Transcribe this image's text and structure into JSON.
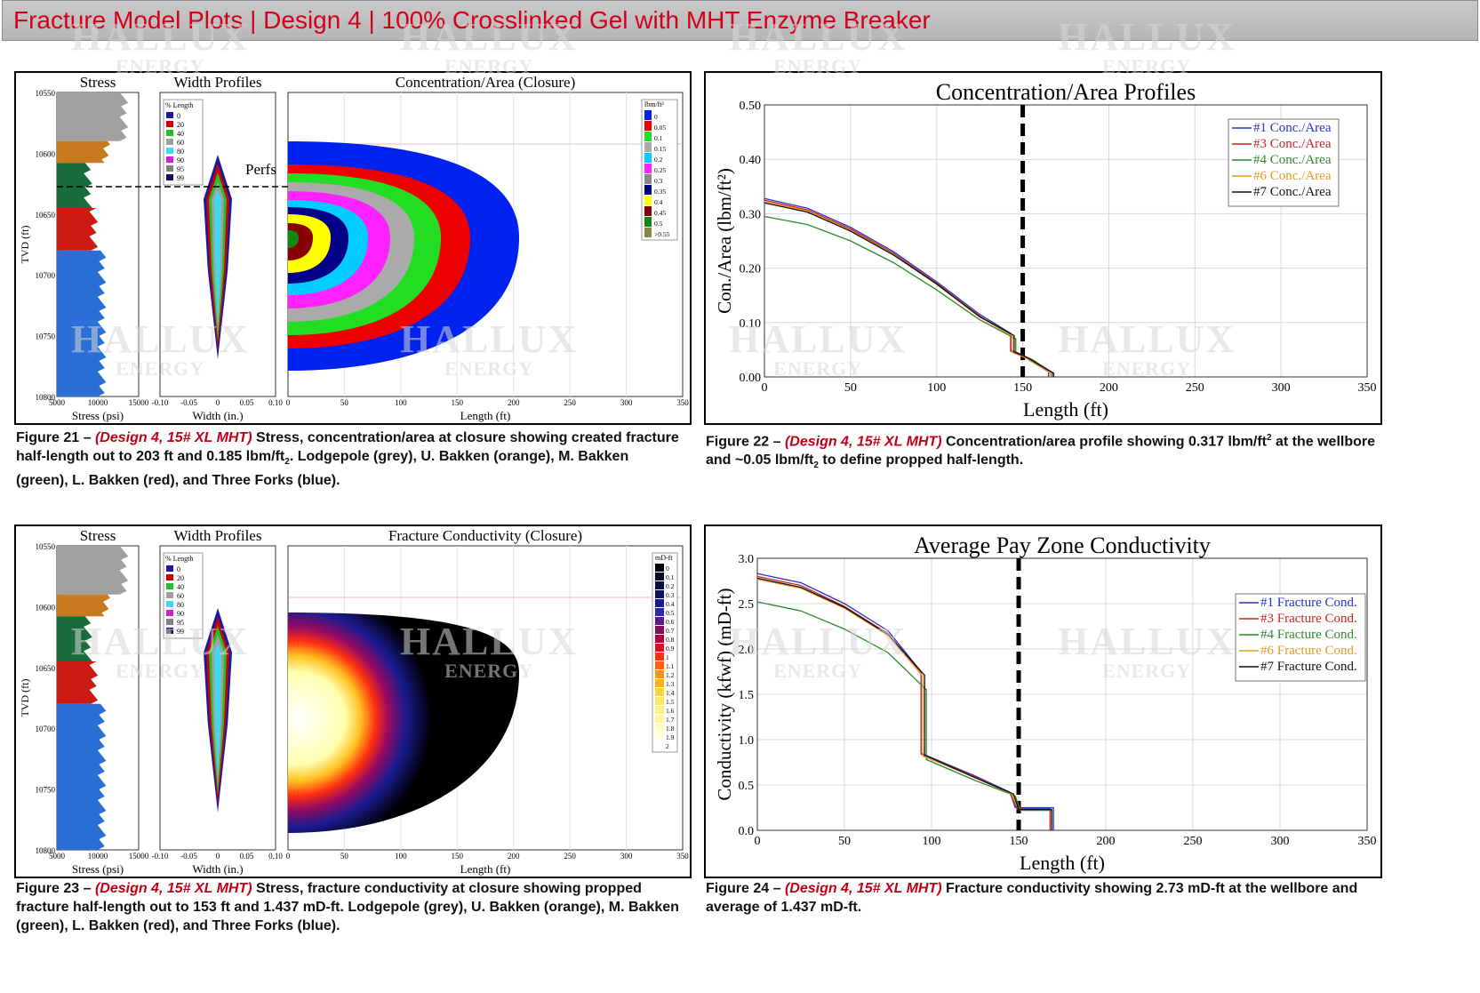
{
  "header": {
    "title": "Fracture Model Plots | Design 4 | 100% Crosslinked Gel with MHT Enzyme Breaker"
  },
  "watermark": {
    "big": "HALLUX",
    "small": "ENERGY"
  },
  "colors": {
    "stress_lodgepole": "#a0a0a0",
    "stress_ubakken": "#c87a1e",
    "stress_mbakken": "#1a6b3a",
    "stress_lbakken": "#cc1a10",
    "stress_threeforks": "#2a6fd6"
  },
  "captions": {
    "fig21": {
      "label": "Figure 21 –",
      "design": "(Design 4, 15# XL MHT)",
      "text": "Stress, concentration/area at closure showing created fracture half-length out to 203 ft and 0.185 lbm/ft",
      "sub": "2",
      "text2": ".  Lodgepole (grey), U. Bakken (orange), M. Bakken (green), L. Bakken (red), and Three Forks (blue)."
    },
    "fig22": {
      "label": "Figure 22 –",
      "design": "(Design 4, 15# XL MHT)",
      "text": "Concentration/area profile showing 0.317 lbm/ft",
      "sup": "2",
      "text2": " at the wellbore and ~0.05 lbm/ft",
      "sub": "2",
      "text3": " to define propped half-length."
    },
    "fig23": {
      "label": "Figure 23 –",
      "design": "(Design 4, 15# XL MHT)",
      "text": "Stress, fracture conductivity at closure showing propped fracture half-length out to 153 ft and 1.437 mD-ft.  Lodgepole (grey), U. Bakken (orange), M. Bakken (green), L. Bakken (red), and Three Forks (blue)."
    },
    "fig24": {
      "label": "Figure 24 –",
      "design": "(Design 4, 15# XL MHT)",
      "text": "Fracture conductivity showing 2.73 mD-ft at the wellbore and average of 1.437 mD-ft."
    }
  },
  "panels": {
    "p21": {
      "stress_title": "Stress",
      "width_title": "Width Profiles",
      "main_title": "Concentration/Area (Closure)",
      "perfs": "Perfs",
      "tvd_label": "TVD (ft)",
      "tvd_ticks": [
        "10550",
        "10600",
        "10650",
        "10700",
        "10750",
        "10800"
      ],
      "stress_ticks": [
        "5000",
        "10000",
        "15000"
      ],
      "stress_xlabel": "Stress (psi)",
      "width_ticks": [
        "-0.10",
        "-0.05",
        "0",
        "0.05",
        "0.10"
      ],
      "width_xlabel": "Width (in.)",
      "len_ticks": [
        "0",
        "50",
        "100",
        "150",
        "200",
        "250",
        "300",
        "350"
      ],
      "len_xlabel": "Length (ft)",
      "wp_legend_title": "% Length",
      "wp_legend": [
        "0",
        "20",
        "40",
        "60",
        "80",
        "90",
        "95",
        "99"
      ],
      "legend_title": "lbm/ft²",
      "legend": [
        "0",
        "0.05",
        "0.1",
        "0.15",
        "0.2",
        "0.25",
        "0.3",
        "0.35",
        "0.4",
        "0.45",
        "0.5",
        ">0.55"
      ]
    },
    "p23": {
      "stress_title": "Stress",
      "width_title": "Width Profiles",
      "main_title": "Fracture Conductivity (Closure)",
      "tvd_label": "TVD (ft)",
      "tvd_ticks": [
        "10550",
        "10600",
        "10650",
        "10700",
        "10750",
        "10800"
      ],
      "stress_ticks": [
        "5000",
        "10000",
        "15000"
      ],
      "stress_xlabel": "Stress (psi)",
      "width_ticks": [
        "-0.10",
        "-0.05",
        "0",
        "0.05",
        "0.10"
      ],
      "width_xlabel": "Width (in.)",
      "len_ticks": [
        "0",
        "50",
        "100",
        "150",
        "200",
        "250",
        "300",
        "350"
      ],
      "len_xlabel": "Length (ft)",
      "wp_legend_title": "% Length",
      "wp_legend": [
        "0",
        "20",
        "40",
        "60",
        "80",
        "90",
        "95",
        "99"
      ],
      "legend_title": "mD-ft",
      "legend": [
        "0",
        "0.1",
        "0.2",
        "0.3",
        "0.4",
        "0.5",
        "0.6",
        "0.7",
        "0.8",
        "0.9",
        "1",
        "1.1",
        "1.2",
        "1.3",
        "1.4",
        "1.5",
        "1.6",
        "1.7",
        "1.8",
        "1.9",
        "2"
      ]
    }
  },
  "chart_data": [
    {
      "type": "line",
      "title": "Concentration/Area Profiles",
      "xlabel": "Length (ft)",
      "ylabel": "Con./Area (lbm/ft²)",
      "xlim": [
        0,
        350
      ],
      "ylim": [
        0,
        0.5
      ],
      "xticks": [
        "0",
        "50",
        "100",
        "150",
        "200",
        "250",
        "300",
        "350"
      ],
      "yticks": [
        "0.00",
        "0.10",
        "0.20",
        "0.30",
        "0.40",
        "0.50"
      ],
      "grid": true,
      "legend_position": "top-right",
      "vline_x": 150,
      "series": [
        {
          "name": "#1 Conc./Area",
          "color": "#2233cc",
          "x": [
            0,
            25,
            50,
            75,
            100,
            125,
            143,
            143,
            150,
            165,
            165
          ],
          "y": [
            0.328,
            0.31,
            0.275,
            0.23,
            0.175,
            0.115,
            0.08,
            0.05,
            0.04,
            0.01,
            0
          ]
        },
        {
          "name": "#3 Conc./Area",
          "color": "#cc2222",
          "x": [
            0,
            25,
            50,
            75,
            100,
            125,
            143,
            143,
            152,
            167,
            167
          ],
          "y": [
            0.325,
            0.307,
            0.272,
            0.227,
            0.172,
            0.112,
            0.077,
            0.047,
            0.037,
            0.008,
            0
          ]
        },
        {
          "name": "#4 Conc./Area",
          "color": "#2a8a2a",
          "x": [
            0,
            25,
            50,
            75,
            100,
            125,
            146,
            146,
            155,
            168,
            168
          ],
          "y": [
            0.295,
            0.28,
            0.25,
            0.21,
            0.16,
            0.105,
            0.07,
            0.043,
            0.033,
            0.006,
            0
          ]
        },
        {
          "name": "#6 Conc./Area",
          "color": "#e69a20",
          "x": [
            0,
            25,
            50,
            75,
            100,
            125,
            144,
            144,
            151,
            166,
            166
          ],
          "y": [
            0.322,
            0.305,
            0.27,
            0.225,
            0.17,
            0.11,
            0.075,
            0.045,
            0.036,
            0.007,
            0
          ]
        },
        {
          "name": "#7 Conc./Area",
          "color": "#111111",
          "x": [
            0,
            25,
            50,
            75,
            100,
            125,
            145,
            145,
            153,
            168,
            168
          ],
          "y": [
            0.32,
            0.303,
            0.268,
            0.224,
            0.171,
            0.111,
            0.076,
            0.046,
            0.035,
            0.007,
            0
          ]
        }
      ]
    },
    {
      "type": "line",
      "title": "Average Pay Zone Conductivity",
      "xlabel": "Length (ft)",
      "ylabel": "Conductivity (kfwf) (mD-ft)",
      "xlim": [
        0,
        350
      ],
      "ylim": [
        0,
        3.0
      ],
      "xticks": [
        "0",
        "50",
        "100",
        "150",
        "200",
        "250",
        "300",
        "350"
      ],
      "yticks": [
        "0.0",
        "0.5",
        "1.0",
        "1.5",
        "2.0",
        "2.5",
        "3.0"
      ],
      "grid": true,
      "legend_position": "top-right",
      "vline_x": 150,
      "series": [
        {
          "name": "#1 Fracture Cond.",
          "color": "#2233cc",
          "x": [
            0,
            25,
            50,
            75,
            94,
            94,
            125,
            145,
            148,
            160,
            160,
            170,
            170
          ],
          "y": [
            2.83,
            2.73,
            2.5,
            2.2,
            1.75,
            0.85,
            0.6,
            0.42,
            0.25,
            0.25,
            0.25,
            0.25,
            0
          ]
        },
        {
          "name": "#3 Fracture Cond.",
          "color": "#cc2222",
          "x": [
            0,
            25,
            50,
            75,
            94,
            94,
            125,
            145,
            149,
            162,
            162,
            168,
            168
          ],
          "y": [
            2.8,
            2.7,
            2.47,
            2.17,
            1.73,
            0.84,
            0.59,
            0.41,
            0.24,
            0.24,
            0.24,
            0.24,
            0
          ]
        },
        {
          "name": "#4 Fracture Cond.",
          "color": "#2a8a2a",
          "x": [
            0,
            25,
            50,
            75,
            97,
            97,
            125,
            148,
            151,
            163,
            163,
            169,
            169
          ],
          "y": [
            2.52,
            2.42,
            2.22,
            1.96,
            1.55,
            0.78,
            0.55,
            0.38,
            0.22,
            0.22,
            0.22,
            0.22,
            0
          ]
        },
        {
          "name": "#6 Fracture Cond.",
          "color": "#e69a20",
          "x": [
            0,
            25,
            50,
            75,
            95,
            95,
            125,
            146,
            150,
            161,
            161,
            169,
            169
          ],
          "y": [
            2.77,
            2.67,
            2.45,
            2.15,
            1.7,
            0.82,
            0.58,
            0.4,
            0.23,
            0.23,
            0.23,
            0.23,
            0
          ]
        },
        {
          "name": "#7 Fracture Cond.",
          "color": "#111111",
          "x": [
            0,
            25,
            50,
            75,
            96,
            96,
            125,
            147,
            150,
            161,
            161,
            169,
            169
          ],
          "y": [
            2.78,
            2.68,
            2.46,
            2.16,
            1.71,
            0.83,
            0.58,
            0.4,
            0.23,
            0.23,
            0.23,
            0.23,
            0
          ]
        }
      ]
    }
  ]
}
